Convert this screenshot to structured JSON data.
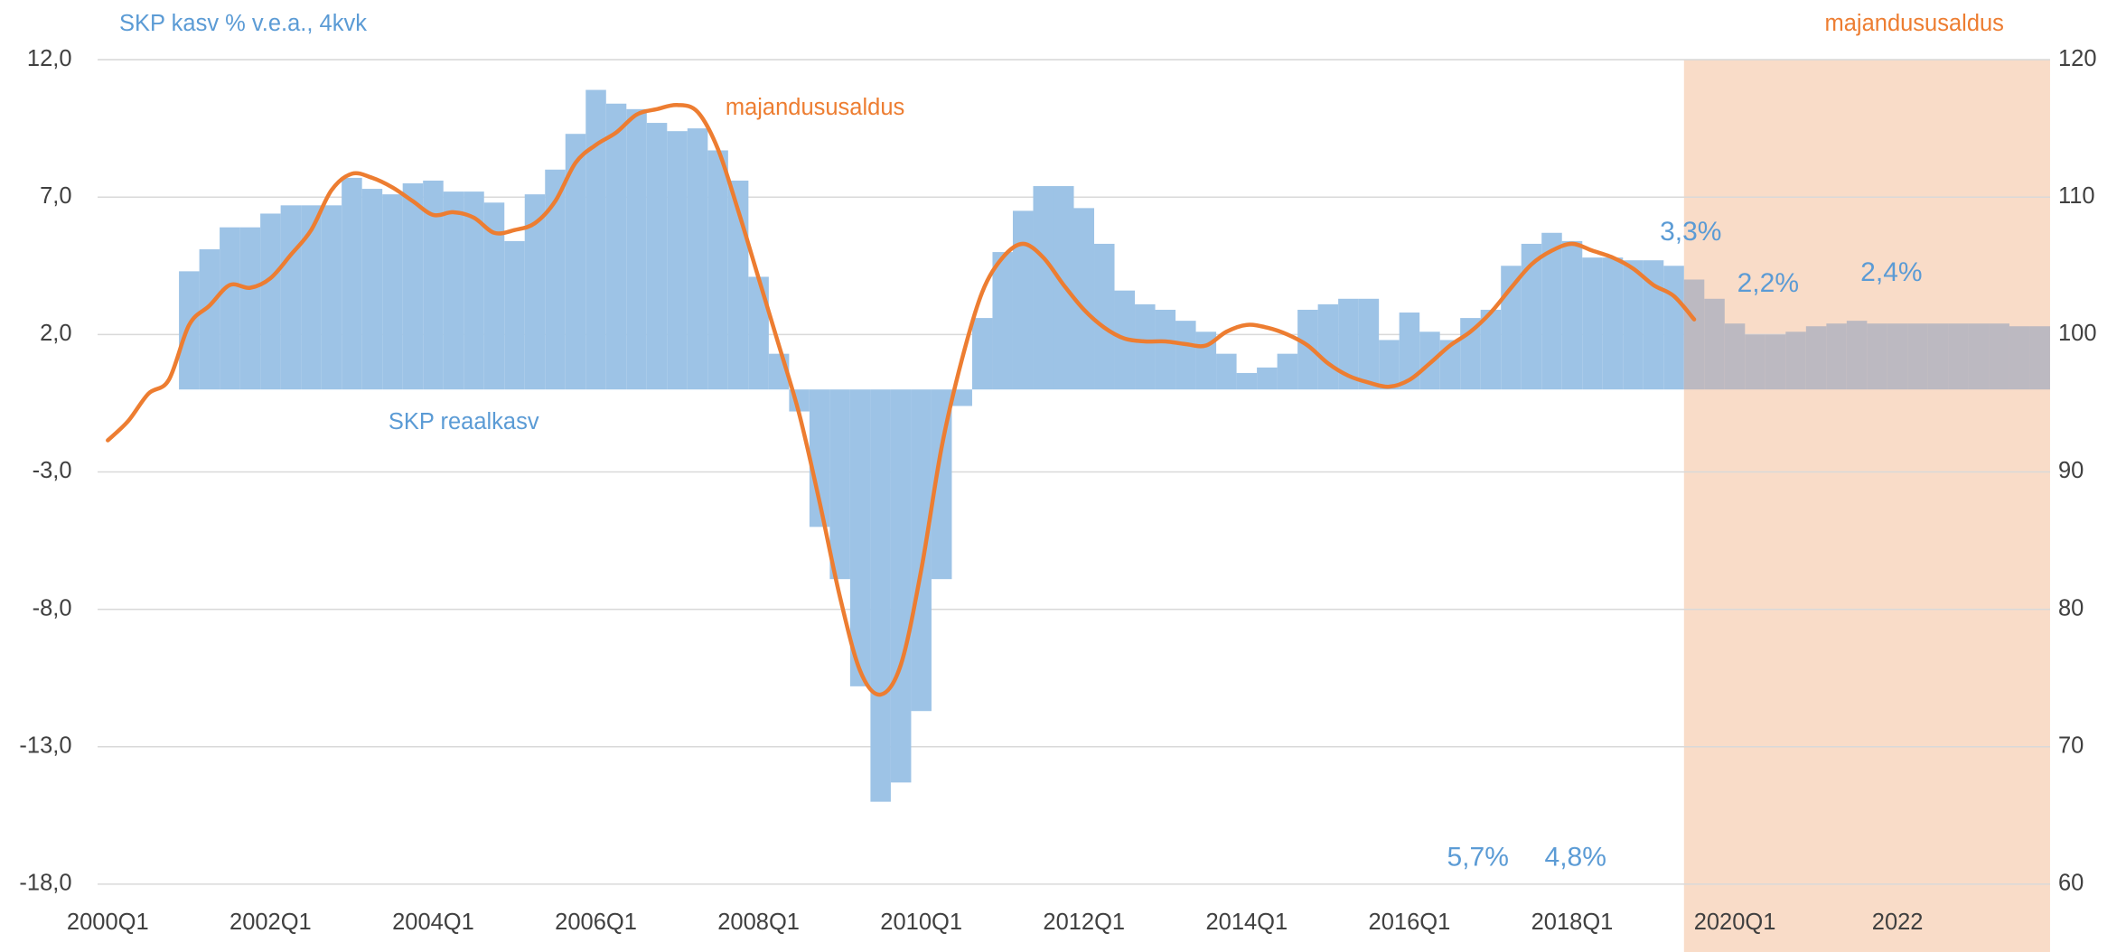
{
  "chart_data": {
    "type": "bar_line",
    "y_axis_title": "SKP kasv % v.e.a., 4kvk",
    "y2_axis_title": "majandususaldus",
    "categories": [
      "2000Q1",
      null,
      null,
      null,
      null,
      null,
      null,
      null,
      "2002Q1",
      null,
      null,
      null,
      null,
      null,
      null,
      null,
      "2004Q1",
      null,
      null,
      null,
      null,
      null,
      null,
      null,
      "2006Q1",
      null,
      null,
      null,
      null,
      null,
      null,
      null,
      "2008Q1",
      null,
      null,
      null,
      null,
      null,
      null,
      null,
      "2010Q1",
      null,
      null,
      null,
      null,
      null,
      null,
      null,
      "2012Q1",
      null,
      null,
      null,
      null,
      null,
      null,
      null,
      "2014Q1",
      null,
      null,
      null,
      null,
      null,
      null,
      null,
      "2016Q1",
      null,
      null,
      null,
      null,
      null,
      null,
      null,
      "2018Q1",
      null,
      null,
      null,
      null,
      null,
      null,
      null,
      "2020Q1",
      null,
      null,
      null,
      null,
      null,
      null,
      null,
      "2022",
      null,
      null,
      null,
      null,
      null,
      null,
      null
    ],
    "series": [
      {
        "name": "SKP reaalkasv",
        "type": "bar",
        "color": "#9dc3e6",
        "values": [
          null,
          null,
          null,
          null,
          4.3,
          5.1,
          5.9,
          5.9,
          6.4,
          6.7,
          6.7,
          6.7,
          7.7,
          7.3,
          7.1,
          7.5,
          7.6,
          7.2,
          7.2,
          6.8,
          5.4,
          7.1,
          8.0,
          9.3,
          10.9,
          10.4,
          10.2,
          9.7,
          9.4,
          9.5,
          8.7,
          7.6,
          4.1,
          1.3,
          -0.8,
          -5.0,
          -6.9,
          -10.8,
          -15.0,
          -14.3,
          -11.7,
          -6.9,
          -0.6,
          2.6,
          5.0,
          6.5,
          7.4,
          7.4,
          6.6,
          5.3,
          3.6,
          3.1,
          2.9,
          2.5,
          2.1,
          1.3,
          0.6,
          0.8,
          1.3,
          2.9,
          3.1,
          3.3,
          3.3,
          1.8,
          2.8,
          2.1,
          1.8,
          2.6,
          2.9,
          4.5,
          5.3,
          5.7,
          5.4,
          4.8,
          4.8,
          4.7,
          4.7,
          4.5,
          null,
          null,
          null,
          null,
          null,
          null,
          null,
          null,
          null,
          null,
          null,
          null,
          null,
          null,
          null,
          null,
          null,
          null
        ]
      },
      {
        "type": "bar",
        "color": "#bcb9c1",
        "forecast": true,
        "shade_color": "#f9dcc8",
        "values": [
          null,
          null,
          null,
          null,
          null,
          null,
          null,
          null,
          null,
          null,
          null,
          null,
          null,
          null,
          null,
          null,
          null,
          null,
          null,
          null,
          null,
          null,
          null,
          null,
          null,
          null,
          null,
          null,
          null,
          null,
          null,
          null,
          null,
          null,
          null,
          null,
          null,
          null,
          null,
          null,
          null,
          null,
          null,
          null,
          null,
          null,
          null,
          null,
          null,
          null,
          null,
          null,
          null,
          null,
          null,
          null,
          null,
          null,
          null,
          null,
          null,
          null,
          null,
          null,
          null,
          null,
          null,
          null,
          null,
          null,
          null,
          null,
          null,
          null,
          null,
          null,
          null,
          null,
          4.0,
          3.3,
          2.4,
          2.0,
          2.0,
          2.1,
          2.3,
          2.4,
          2.5,
          2.4,
          2.4,
          2.4,
          2.4,
          2.4,
          2.4,
          2.4,
          2.3,
          2.3
        ]
      },
      {
        "name": "majandususaldus",
        "type": "line",
        "axis": "y2",
        "color": "#ed7d31",
        "values": [
          92.3,
          93.7,
          95.7,
          96.7,
          100.7,
          102.1,
          103.6,
          103.4,
          104.1,
          105.8,
          107.6,
          110.5,
          111.7,
          111.4,
          110.7,
          109.7,
          108.7,
          108.9,
          108.5,
          107.4,
          107.6,
          108.1,
          109.7,
          112.5,
          113.8,
          114.7,
          116.0,
          116.4,
          116.7,
          116.2,
          113.5,
          109.0,
          104.1,
          99.2,
          94.2,
          87.8,
          80.9,
          75.5,
          73.8,
          76.0,
          82.9,
          91.8,
          98.2,
          103.1,
          105.6,
          106.6,
          105.6,
          103.6,
          101.8,
          100.5,
          99.7,
          99.5,
          99.5,
          99.3,
          99.2,
          100.2,
          100.7,
          100.5,
          100.0,
          99.2,
          97.9,
          97.0,
          96.5,
          96.2,
          96.7,
          97.9,
          99.2,
          100.2,
          101.6,
          103.4,
          105.1,
          106.1,
          106.6,
          106.1,
          105.6,
          104.8,
          103.6,
          102.8,
          101.1,
          null,
          null,
          null,
          null,
          null,
          null,
          null,
          null,
          null,
          null,
          null,
          null,
          null,
          null,
          null,
          null,
          null
        ]
      }
    ],
    "annotations": [
      "3,3%",
      "2,2%",
      "2,4%",
      "5,7%",
      "4,8%"
    ],
    "ylim": [
      -18,
      12
    ],
    "yticks": [
      {
        "value": -18,
        "label": "-18,0"
      },
      {
        "value": -13,
        "label": "-13,0"
      },
      {
        "value": -8,
        "label": "-8,0"
      },
      {
        "value": -3,
        "label": "-3,0"
      },
      {
        "value": 2,
        "label": "2,0"
      },
      {
        "value": 7,
        "label": "7,0"
      },
      {
        "value": 12,
        "label": "12,0"
      }
    ],
    "y2lim": [
      60,
      120
    ],
    "y2ticks": [
      60,
      70,
      80,
      90,
      100,
      110,
      120
    ],
    "grid": true
  }
}
